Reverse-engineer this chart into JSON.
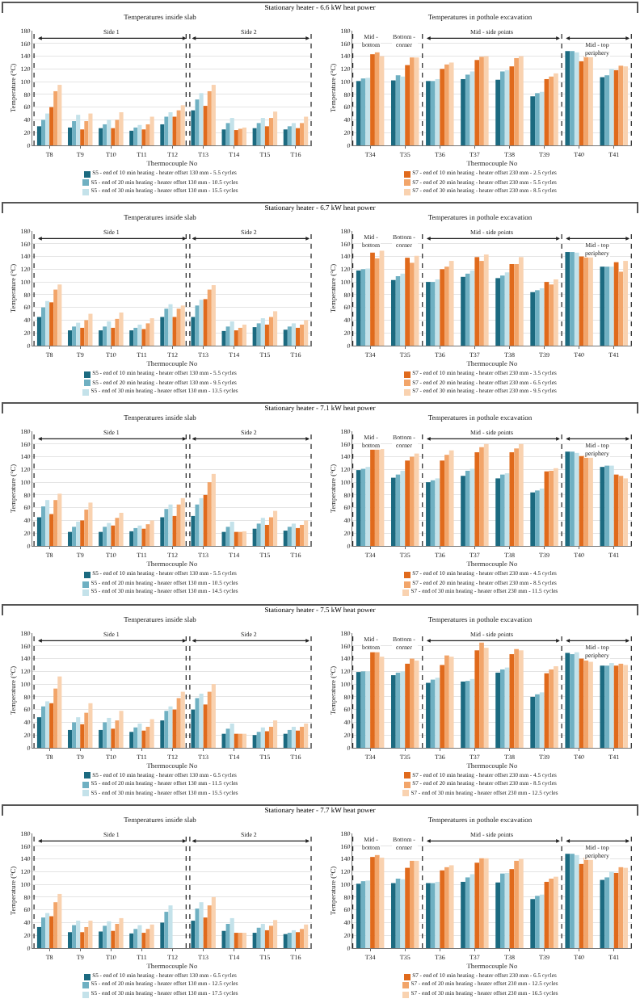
{
  "chart_data": [
    {
      "type": "bar",
      "title": "Temperatures inside slab",
      "xlabel": "Thermocouple No",
      "ylabel": "Temperature (°C)",
      "annotations": [
        "Stationary heater - 6.6 kW heat power",
        "Side 1",
        "Side 2"
      ],
      "categories": [
        "T8",
        "T9",
        "T10",
        "T11",
        "T12",
        "T13",
        "T14",
        "T15",
        "T16"
      ],
      "ylim": [
        0,
        180
      ],
      "yticks": [
        0,
        20,
        40,
        60,
        80,
        100,
        120,
        140,
        160,
        180
      ],
      "grid": "y",
      "legend": "bottom",
      "series": [
        {
          "name": "S5 - end of 10 min heating - heater offset 130 mm - 5.5 cycles",
          "color": "#1b6a80",
          "values": [
            30,
            28,
            27,
            23,
            33,
            55,
            25,
            27,
            25
          ]
        },
        {
          "name": "S5 - end of 20 min heating - heater offset 130 mm - 10.5 cycles",
          "color": "#6fb0c2",
          "values": [
            40,
            38,
            33,
            28,
            45,
            72,
            35,
            35,
            30
          ]
        },
        {
          "name": "S5 - end of 30 min heating - heater offset 130 mm - 15.5 cycles",
          "color": "#c4e2ea",
          "values": [
            50,
            48,
            40,
            32,
            52,
            82,
            43,
            43,
            35
          ]
        },
        {
          "color": "#e06a1c",
          "values": [
            60,
            25,
            27,
            25,
            45,
            62,
            24,
            30,
            27
          ]
        },
        {
          "color": "#f2a56a",
          "values": [
            85,
            38,
            40,
            33,
            55,
            85,
            26,
            43,
            35
          ]
        },
        {
          "color": "#f9d2b0",
          "values": [
            95,
            50,
            52,
            45,
            63,
            95,
            28,
            53,
            45
          ]
        }
      ]
    },
    {
      "type": "bar",
      "title": "Temperatures in pothole excavation",
      "xlabel": "Thermocouple No",
      "ylabel": "Temperature (°C)",
      "annotations": [
        "Mid - bottom",
        "Bottom - corner",
        "Mid - side points",
        "Mid - top periphery"
      ],
      "categories": [
        "T34",
        "T35",
        "T36",
        "T37",
        "T38",
        "T39",
        "T40",
        "T41"
      ],
      "ylim": [
        0,
        180
      ],
      "yticks": [
        0,
        20,
        40,
        60,
        80,
        100,
        120,
        140,
        160,
        180
      ],
      "grid": "y",
      "legend": "bottom",
      "series": [
        {
          "color": "#1b6a80",
          "values": [
            101,
            102,
            101,
            104,
            103,
            77,
            148,
            107
          ]
        },
        {
          "color": "#6fb0c2",
          "values": [
            105,
            110,
            101,
            111,
            116,
            82,
            148,
            110
          ]
        },
        {
          "color": "#c4e2ea",
          "values": [
            106,
            108,
            104,
            116,
            118,
            84,
            146,
            120
          ]
        },
        {
          "name": "S7 - end of 10 min heating - heater offset 230 mm - 2.5 cycles",
          "color": "#e06a1c",
          "values": [
            143,
            126,
            120,
            134,
            124,
            104,
            132,
            118
          ]
        },
        {
          "name": "S7 - end of 20 min heating - heater offset 230 mm - 5.5 cycles",
          "color": "#f2a56a",
          "values": [
            146,
            138,
            127,
            139,
            137,
            108,
            140,
            125
          ]
        },
        {
          "name": "S7 - end of 30 min heating - heater offset 230 mm - 8.5 cycles",
          "color": "#f9d2b0",
          "values": [
            140,
            138,
            130,
            140,
            140,
            113,
            140,
            124
          ]
        }
      ]
    },
    {
      "type": "bar",
      "title": "Temperatures inside slab",
      "xlabel": "Thermocouple No",
      "ylabel": "Temperature (°C)",
      "annotations": [
        "Stationary heater - 6.7 kW heat power",
        "Side 1",
        "Side 2"
      ],
      "categories": [
        "T8",
        "T9",
        "T10",
        "T11",
        "T12",
        "T13",
        "T14",
        "T15",
        "T16"
      ],
      "ylim": [
        0,
        180
      ],
      "yticks": [
        0,
        20,
        40,
        60,
        80,
        100,
        120,
        140,
        160,
        180
      ],
      "grid": "y",
      "legend": "bottom",
      "series": [
        {
          "name": "S5 - end of 10 min heating - heater offset 130 mm - 5.5 cycles",
          "color": "#1b6a80",
          "values": [
            45,
            24,
            24,
            24,
            45,
            45,
            23,
            29,
            25
          ]
        },
        {
          "name": "S5 - end of 20 min heating - heater offset 130 mm - 9.5 cycles",
          "color": "#6fb0c2",
          "values": [
            60,
            30,
            30,
            28,
            58,
            63,
            30,
            35,
            30
          ]
        },
        {
          "name": "S5 - end of 30 min heating - heater offset 130 mm - 13.5 cycles",
          "color": "#c4e2ea",
          "values": [
            70,
            36,
            38,
            33,
            65,
            72,
            38,
            43,
            35
          ]
        },
        {
          "color": "#e06a1c",
          "values": [
            68,
            28,
            28,
            26,
            45,
            73,
            24,
            33,
            28
          ]
        },
        {
          "color": "#f2a56a",
          "values": [
            88,
            40,
            42,
            35,
            58,
            88,
            28,
            45,
            33
          ]
        },
        {
          "color": "#f9d2b0",
          "values": [
            96,
            50,
            52,
            43,
            63,
            95,
            33,
            54,
            40
          ]
        }
      ]
    },
    {
      "type": "bar",
      "title": "Temperatures in pothole excavation",
      "xlabel": "Thermocouple No",
      "ylabel": "Temperature (°C)",
      "annotations": [
        "Mid - bottom",
        "Bottom - corner",
        "Mid - side points",
        "Mid - top periphery"
      ],
      "categories": [
        "T34",
        "T35",
        "T36",
        "T37",
        "T38",
        "T39",
        "T40",
        "T41"
      ],
      "ylim": [
        0,
        180
      ],
      "yticks": [
        0,
        20,
        40,
        60,
        80,
        100,
        120,
        140,
        160,
        180
      ],
      "grid": "y",
      "legend": "bottom",
      "series": [
        {
          "color": "#1b6a80",
          "values": [
            118,
            103,
            100,
            108,
            106,
            84,
            147,
            124
          ]
        },
        {
          "color": "#6fb0c2",
          "values": [
            120,
            109,
            100,
            113,
            110,
            87,
            147,
            124
          ]
        },
        {
          "color": "#c4e2ea",
          "values": [
            121,
            113,
            104,
            118,
            115,
            90,
            146,
            124
          ]
        },
        {
          "name": "S7 - end of 10 min heating - heater offset 230 mm - 3.5 cycles",
          "color": "#e06a1c",
          "values": [
            146,
            138,
            120,
            139,
            128,
            100,
            140,
            131
          ]
        },
        {
          "name": "S7 - end of 20 min heating - heater offset 230 mm - 6.5 cycles",
          "color": "#f2a56a",
          "values": [
            137,
            130,
            124,
            133,
            128,
            96,
            140,
            116
          ]
        },
        {
          "name": "S7 - end of 30 min heating - heater offset 230 mm - 9.5 cycles",
          "color": "#f9d2b0",
          "values": [
            149,
            141,
            133,
            143,
            139,
            104,
            143,
            133
          ]
        }
      ]
    },
    {
      "type": "bar",
      "title": "Temperatures inside slab",
      "xlabel": "Thermocouple No",
      "ylabel": "Temperature (°C)",
      "annotations": [
        "Stationary heater - 7.1 kW heat power",
        "Side 1",
        "Side 2"
      ],
      "categories": [
        "T8",
        "T9",
        "T10",
        "T11",
        "T12",
        "T13",
        "T14",
        "T15",
        "T16"
      ],
      "ylim": [
        0,
        180
      ],
      "yticks": [
        0,
        20,
        40,
        60,
        80,
        100,
        120,
        140,
        160,
        180
      ],
      "grid": "y",
      "legend": "bottom",
      "series": [
        {
          "name": "S5 - end of 10 min heating - heater offset 130 mm - 5.5 cycles",
          "color": "#1b6a80",
          "values": [
            45,
            22,
            22,
            23,
            45,
            47,
            22,
            27,
            24
          ]
        },
        {
          "name": "S5 - end of 20 min heating - heater offset 130 mm - 10.5 cycles",
          "color": "#6fb0c2",
          "values": [
            62,
            30,
            30,
            28,
            58,
            65,
            30,
            35,
            30
          ]
        },
        {
          "name": "S5 - end of 30 min heating - heater offset 130 mm - 14.5 cycles",
          "color": "#c4e2ea",
          "values": [
            72,
            38,
            36,
            32,
            65,
            75,
            38,
            44,
            35
          ]
        },
        {
          "color": "#e06a1c",
          "values": [
            50,
            40,
            32,
            27,
            47,
            80,
            22,
            33,
            28
          ]
        },
        {
          "color": "#f2a56a",
          "values": [
            72,
            57,
            44,
            34,
            65,
            100,
            22,
            45,
            33
          ]
        },
        {
          "color": "#f9d2b0",
          "values": [
            82,
            68,
            52,
            40,
            75,
            113,
            23,
            55,
            40
          ]
        }
      ]
    },
    {
      "type": "bar",
      "title": "Temperatures in pothole excavation",
      "xlabel": "Thermocouple No",
      "ylabel": "Temperature (°C)",
      "annotations": [
        "Mid - bottom",
        "Bottom - corner",
        "Mid - side points",
        "Mid - top periphery"
      ],
      "categories": [
        "T34",
        "T35",
        "T36",
        "T37",
        "T38",
        "T39",
        "T40",
        "T41"
      ],
      "ylim": [
        0,
        180
      ],
      "yticks": [
        0,
        20,
        40,
        60,
        80,
        100,
        120,
        140,
        160,
        180
      ],
      "grid": "y",
      "legend": "bottom",
      "series": [
        {
          "color": "#1b6a80",
          "values": [
            119,
            107,
            100,
            110,
            106,
            84,
            148,
            124
          ]
        },
        {
          "color": "#6fb0c2",
          "values": [
            121,
            112,
            103,
            118,
            112,
            87,
            148,
            126
          ]
        },
        {
          "color": "#c4e2ea",
          "values": [
            124,
            118,
            106,
            121,
            114,
            90,
            146,
            126
          ]
        },
        {
          "name": "S7 - end of 10 min heating - heater offset 230 mm - 4.5 cycles",
          "color": "#e06a1c",
          "values": [
            152,
            134,
            134,
            147,
            147,
            117,
            141,
            112
          ]
        },
        {
          "name": "S7 - end of 20 min heating - heater offset 230 mm - 8.5 cycles",
          "color": "#f2a56a",
          "values": [
            153,
            140,
            143,
            155,
            153,
            118,
            142,
            110
          ]
        },
        {
          "name": "S7 - end of 30 min heating - heater offset 230 mm - 11.5 cycles",
          "color": "#f9d2b0",
          "values": [
            152,
            145,
            150,
            160,
            160,
            122,
            140,
            106
          ]
        }
      ]
    },
    {
      "type": "bar",
      "title": "Temperatures inside slab",
      "xlabel": "Thermocouple No",
      "ylabel": "Temperature (°C)",
      "annotations": [
        "Stationary heater - 7.5 kW heat power",
        "Side 1",
        "Side 2"
      ],
      "categories": [
        "T8",
        "T9",
        "T10",
        "T11",
        "T12",
        "T13",
        "T14",
        "T15",
        "T16"
      ],
      "ylim": [
        0,
        180
      ],
      "yticks": [
        0,
        20,
        40,
        60,
        80,
        100,
        120,
        140,
        160,
        180
      ],
      "grid": "y",
      "legend": "bottom",
      "series": [
        {
          "name": "S5 - end of 10 min heating - heater offset 130 mm - 6.5 cycles",
          "color": "#1b6a80",
          "values": [
            48,
            28,
            28,
            25,
            43,
            60,
            22,
            20,
            22
          ]
        },
        {
          "name": "S5 - end of 20 min heating - heater offset 130 mm - 11.5 cycles",
          "color": "#6fb0c2",
          "values": [
            65,
            40,
            40,
            32,
            58,
            78,
            30,
            25,
            28
          ]
        },
        {
          "name": "S5 - end of 30 min heating - heater offset 130 mm - 15.5 cycles",
          "color": "#c4e2ea",
          "values": [
            73,
            48,
            47,
            38,
            65,
            85,
            38,
            32,
            33
          ]
        },
        {
          "color": "#e06a1c",
          "values": [
            70,
            37,
            30,
            27,
            60,
            68,
            22,
            26,
            27
          ]
        },
        {
          "color": "#f2a56a",
          "values": [
            93,
            55,
            43,
            33,
            78,
            88,
            22,
            33,
            33
          ]
        },
        {
          "color": "#f9d2b0",
          "values": [
            112,
            70,
            58,
            45,
            88,
            100,
            22,
            43,
            38
          ]
        }
      ]
    },
    {
      "type": "bar",
      "title": "Temperatures in pothole excavation",
      "xlabel": "Thermocouple No",
      "ylabel": "Temperature (°C)",
      "annotations": [
        "Mid - bottom",
        "Bottom - corner",
        "Mid - side points",
        "Mid - top periphery"
      ],
      "categories": [
        "T34",
        "T35",
        "T36",
        "T37",
        "T38",
        "T39",
        "T40",
        "T41"
      ],
      "ylim": [
        0,
        180
      ],
      "yticks": [
        0,
        20,
        40,
        60,
        80,
        100,
        120,
        140,
        160,
        180
      ],
      "grid": "y",
      "legend": "bottom",
      "series": [
        {
          "color": "#1b6a80",
          "values": [
            119,
            114,
            102,
            104,
            118,
            80,
            149,
            129
          ]
        },
        {
          "color": "#6fb0c2",
          "values": [
            120,
            118,
            107,
            105,
            123,
            84,
            147,
            129
          ]
        },
        {
          "color": "#c4e2ea",
          "values": [
            120,
            120,
            110,
            108,
            126,
            87,
            150,
            133
          ]
        },
        {
          "name": "S7 - end of 10 min heating - heater offset 230 mm - 4.5 cycles",
          "color": "#e06a1c",
          "values": [
            150,
            132,
            130,
            153,
            147,
            117,
            140,
            129
          ]
        },
        {
          "name": "S7 - end of 20 min heating - heater offset 230 mm - 8.5 cycles",
          "color": "#f2a56a",
          "values": [
            150,
            140,
            145,
            165,
            155,
            123,
            137,
            132
          ]
        },
        {
          "name": "S7 - end of 30 min heating - heater offset 230 mm - 12.5 cycles",
          "color": "#f9d2b0",
          "values": [
            143,
            137,
            143,
            157,
            153,
            128,
            135,
            130
          ]
        }
      ]
    },
    {
      "type": "bar",
      "title": "Temperatures inside slab",
      "xlabel": "Thermocouple No",
      "ylabel": "Temperature (°C)",
      "annotations": [
        "Stationary heater - 7.7 kW heat power",
        "Side 1",
        "Side 2"
      ],
      "categories": [
        "T8",
        "T9",
        "T10",
        "T11",
        "T12",
        "T13",
        "T14",
        "T15",
        "T16"
      ],
      "ylim": [
        0,
        180
      ],
      "yticks": [
        0,
        20,
        40,
        60,
        80,
        100,
        120,
        140,
        160,
        180
      ],
      "grid": "y",
      "legend": "bottom",
      "series": [
        {
          "name": "S5 - end of 10 min heating - heater offset 130 mm - 6.5 cycles",
          "color": "#1b6a80",
          "values": [
            33,
            25,
            26,
            23,
            40,
            43,
            27,
            24,
            22
          ]
        },
        {
          "name": "S5 - end of 20 min heating - heater offset 130 mm - 12.5 cycles",
          "color": "#6fb0c2",
          "values": [
            48,
            36,
            35,
            30,
            57,
            62,
            38,
            32,
            24
          ]
        },
        {
          "name": "S5 - end of 30 min heating - heater offset 130 mm - 17.5 cycles",
          "color": "#c4e2ea",
          "values": [
            55,
            43,
            42,
            36,
            67,
            72,
            47,
            38,
            28
          ]
        },
        {
          "color": "#e06a1c",
          "values": [
            50,
            25,
            27,
            24,
            null,
            48,
            24,
            28,
            25
          ]
        },
        {
          "color": "#f2a56a",
          "values": [
            72,
            33,
            38,
            30,
            null,
            67,
            24,
            35,
            30
          ]
        },
        {
          "color": "#f9d2b0",
          "values": [
            85,
            43,
            47,
            37,
            null,
            80,
            24,
            44,
            37
          ]
        }
      ]
    },
    {
      "type": "bar",
      "title": "Temperatures in pothole excavation",
      "xlabel": "Thermocouple No",
      "ylabel": "Temperature (°C)",
      "annotations": [
        "Mid - bottom",
        "Bottom - corner",
        "Mid - side points",
        "Mid - top periphery"
      ],
      "categories": [
        "T34",
        "T35",
        "T36",
        "T37",
        "T38",
        "T39",
        "T40",
        "T41"
      ],
      "ylim": [
        0,
        180
      ],
      "yticks": [
        0,
        20,
        40,
        60,
        80,
        100,
        120,
        140,
        160,
        180
      ],
      "grid": "y",
      "legend": "bottom",
      "series": [
        {
          "color": "#1b6a80",
          "values": [
            101,
            102,
            102,
            104,
            103,
            77,
            148,
            107
          ]
        },
        {
          "color": "#6fb0c2",
          "values": [
            105,
            109,
            102,
            111,
            117,
            82,
            148,
            111
          ]
        },
        {
          "color": "#c4e2ea",
          "values": [
            106,
            108,
            104,
            116,
            118,
            84,
            146,
            120
          ]
        },
        {
          "name": "S7 - end of 10 min heating - heater offset 230 mm - 6.5 cycles",
          "color": "#e06a1c",
          "values": [
            143,
            126,
            122,
            134,
            124,
            104,
            132,
            118
          ]
        },
        {
          "name": "S7 - end of 20 min heating - heater offset 230 mm - 12.5 cycles",
          "color": "#f2a56a",
          "values": [
            146,
            137,
            127,
            141,
            137,
            109,
            142,
            127
          ]
        },
        {
          "name": "S7 - end of 30 min heating - heater offset 230 mm - 16.5 cycles",
          "color": "#f9d2b0",
          "values": [
            142,
            137,
            130,
            141,
            140,
            112,
            142,
            126
          ]
        }
      ]
    }
  ]
}
